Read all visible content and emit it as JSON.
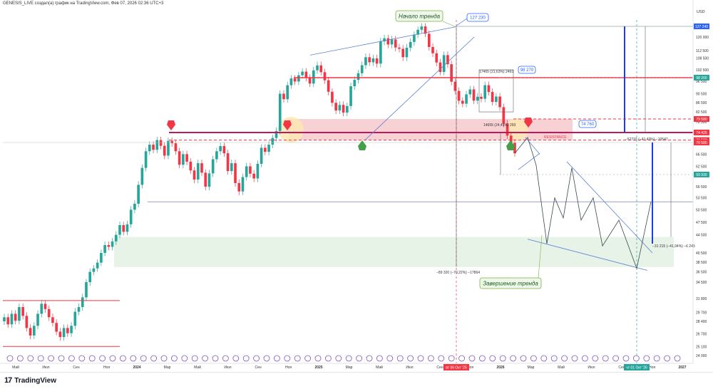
{
  "header": {
    "title": "GENESIS_LIVE создал(а) график на TradingView.com, Фев 07, 2026 02:36 UTC+3"
  },
  "footer": {
    "brand": "TradingView"
  },
  "chart_data": {
    "type": "candlestick",
    "currency": "USD",
    "y_ticks": [
      120000,
      112500,
      108500,
      102500,
      96500,
      90500,
      86500,
      82500,
      78500,
      66500,
      62500,
      56500,
      53500,
      50500,
      47500,
      44500,
      40500,
      38500,
      36500,
      34500,
      31800,
      29700,
      28400,
      26700,
      25100,
      24000
    ],
    "x_ticks": [
      "Май",
      "Июл",
      "Сен",
      "Ноя",
      "2024",
      "Мар",
      "Май",
      "Июл",
      "Сен",
      "Ноя",
      "2025",
      "Мар",
      "Май",
      "Июл",
      "Сен",
      "Ноя",
      "2026",
      "Мар",
      "Май",
      "Июл",
      "Сен",
      "Ноя",
      "2027"
    ],
    "price_labels": [
      {
        "text": "127 240",
        "value": 127240,
        "color": "#2962ff"
      },
      {
        "text": "98 200",
        "value": 98200,
        "color": "#26a69a"
      },
      {
        "text": "79 580",
        "value": 79580,
        "color": "#f23645"
      },
      {
        "text": "74 425",
        "value": 74425,
        "color": "#f23645"
      },
      {
        "text": "71 500",
        "value": 71500,
        "color": "#f23645"
      },
      {
        "text": "70 580",
        "value": 70580,
        "color": "#f23645"
      },
      {
        "text": "59 930",
        "value": 59930,
        "color": "#26a69a"
      }
    ],
    "x_labels": [
      {
        "text": "вт 06 Окт '25",
        "color": "#f23645"
      },
      {
        "text": "чт 01 Окт '26",
        "color": "#26a69a"
      }
    ],
    "annotations": {
      "trend_start": "Начало тренда",
      "trend_end": "Завершение тренда",
      "peak_label": "127 230",
      "level_98": "98 270",
      "level_74": "74 760",
      "resistance": "RESISTANCE",
      "m1": "17465 (21,63%) 2493",
      "m2": "14655 (24,45%) 293",
      "m3": "−89 320 (−70,22%) −17864",
      "m4": "−52715 (−41,43%) −10547",
      "m5": "−31 215 (−41,94%) −6 243"
    },
    "series": [
      {
        "name": "BTCUSD",
        "values": [
          29000,
          28000,
          29500,
          28500,
          30500,
          29200,
          27500,
          26500,
          27800,
          29500,
          31000,
          30200,
          29000,
          28200,
          27000,
          26300,
          27500,
          26800,
          27800,
          29800,
          30500,
          32000,
          34500,
          36500,
          37200,
          38400,
          40500,
          42200,
          41800,
          43000,
          44500,
          46800,
          45200,
          47000,
          50500,
          52000,
          57000,
          62000,
          67500,
          69800,
          68000,
          71500,
          69400,
          66000,
          71200,
          70300,
          67500,
          63000,
          66500,
          64000,
          61200,
          58500,
          63500,
          60500,
          56500,
          60300,
          64800,
          67500,
          69300,
          66800,
          61000,
          63500,
          57500,
          55200,
          59200,
          62500,
          60200,
          58800,
          63300,
          68700,
          67300,
          69800,
          72300,
          75000,
          90500,
          88000,
          94500,
          97800,
          96300,
          99500,
          101500,
          98200,
          95300,
          102200,
          104700,
          101200,
          96900,
          91400,
          86400,
          83100,
          85500,
          82200,
          85000,
          94000,
          97100,
          100600,
          104800,
          108900,
          106300,
          108300,
          105600,
          117500,
          119300,
          115800,
          118600,
          114100,
          113400,
          108900,
          114000,
          117200,
          121600,
          124900,
          127200,
          122200,
          114400,
          111000,
          106200,
          101300,
          110000,
          105300,
          96200,
          91800,
          87300,
          86000,
          90200,
          92500,
          87400,
          89100,
          88200,
          94500,
          91300,
          86800,
          89200,
          84500,
          77800,
          73200,
          70500,
          66800
        ]
      }
    ]
  }
}
